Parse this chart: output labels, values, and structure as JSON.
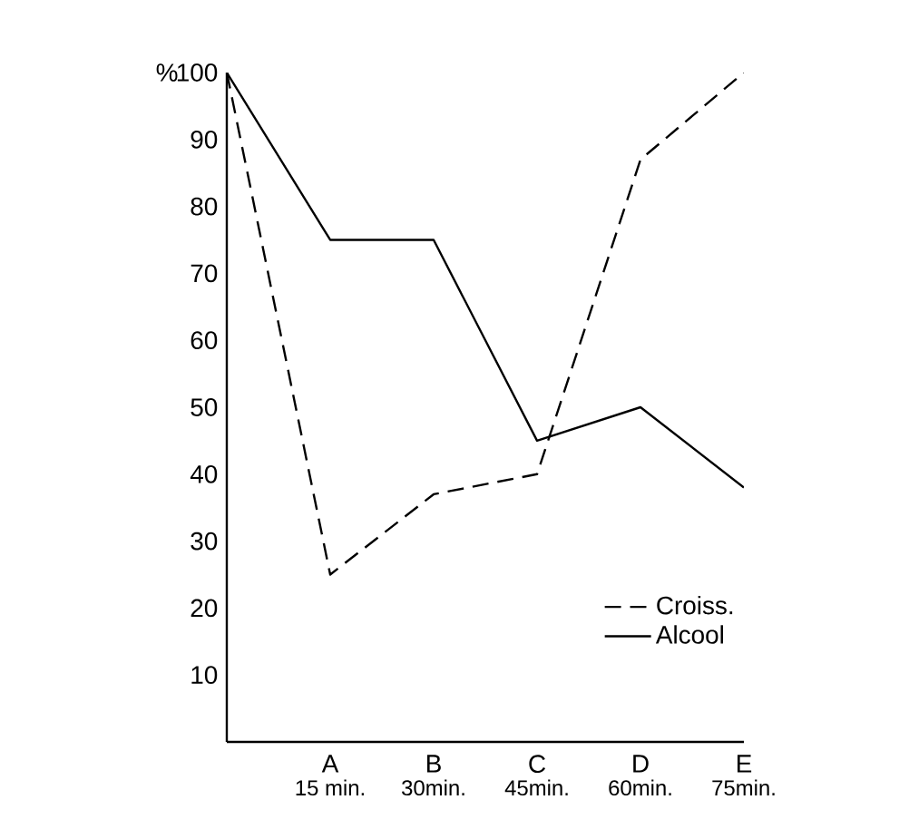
{
  "chart_data": {
    "type": "line",
    "ylabel": "%",
    "x": [
      0,
      15,
      30,
      45,
      60,
      75
    ],
    "series": [
      {
        "name": "Croiss.",
        "color": "#000000",
        "line_style": "dashed",
        "values": [
          100,
          25,
          37,
          40,
          87,
          100
        ]
      },
      {
        "name": "Alcool",
        "color": "#000000",
        "line_style": "solid",
        "values": [
          100,
          75,
          75,
          45,
          50,
          38
        ]
      }
    ],
    "xlim": [
      0,
      75
    ],
    "xticks": [
      {
        "value": 15,
        "label": "15 min."
      },
      {
        "value": 30,
        "label": "30min."
      },
      {
        "value": 45,
        "label": "45min."
      },
      {
        "value": 60,
        "label": "60min."
      },
      {
        "value": 75,
        "label": "75min."
      }
    ],
    "annotations": [
      "A",
      "B",
      "C",
      "D",
      "E"
    ],
    "ylim": [
      0,
      100
    ],
    "yticks": [
      10,
      20,
      30,
      40,
      50,
      60,
      70,
      80,
      90,
      100
    ],
    "grid": false,
    "legend": "bottom right",
    "marker": "none"
  }
}
